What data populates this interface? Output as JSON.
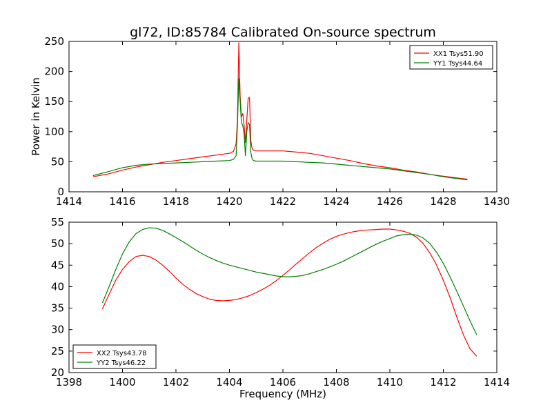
{
  "chart_data": [
    {
      "type": "line",
      "title": "gl72, ID:85784 Calibrated On-source spectrum",
      "xlabel": "",
      "ylabel": "Power in Kelvin",
      "xlim": [
        1414,
        1430
      ],
      "ylim": [
        0,
        250
      ],
      "xticks": [
        "1414",
        "1416",
        "1418",
        "1420",
        "1422",
        "1424",
        "1426",
        "1428",
        "1430"
      ],
      "yticks": [
        "0",
        "50",
        "100",
        "150",
        "200",
        "250"
      ],
      "legend_position": "top-right",
      "series": [
        {
          "name": "XX1 Tsys51.90",
          "color": "#ff0000",
          "x": [
            1414.9,
            1415.5,
            1416.0,
            1416.5,
            1417.0,
            1417.5,
            1418.0,
            1418.5,
            1419.0,
            1419.5,
            1420.0,
            1420.15,
            1420.25,
            1420.3,
            1420.35,
            1420.4,
            1420.45,
            1420.5,
            1420.55,
            1420.6,
            1420.65,
            1420.7,
            1420.75,
            1420.8,
            1420.85,
            1420.9,
            1421.0,
            1421.5,
            1422.0,
            1422.5,
            1423.0,
            1423.5,
            1424.0,
            1424.5,
            1425.0,
            1425.5,
            1426.0,
            1426.5,
            1427.0,
            1427.5,
            1428.0,
            1428.5,
            1428.9
          ],
          "y": [
            25,
            30,
            36,
            41,
            45,
            49,
            52,
            55,
            58,
            61,
            64,
            67,
            80,
            120,
            248,
            160,
            125,
            130,
            110,
            82,
            120,
            155,
            157,
            85,
            72,
            69,
            68,
            68,
            68,
            66,
            64,
            60,
            56,
            52,
            47,
            43,
            40,
            36,
            33,
            29,
            26,
            23,
            21
          ]
        },
        {
          "name": "YY1 Tsys44.64",
          "color": "#008000",
          "x": [
            1414.9,
            1415.5,
            1416.0,
            1416.5,
            1417.0,
            1417.5,
            1418.0,
            1418.5,
            1419.0,
            1419.5,
            1420.0,
            1420.15,
            1420.25,
            1420.3,
            1420.35,
            1420.4,
            1420.45,
            1420.5,
            1420.55,
            1420.6,
            1420.65,
            1420.7,
            1420.75,
            1420.8,
            1420.85,
            1420.9,
            1421.0,
            1421.5,
            1422.0,
            1422.5,
            1423.0,
            1423.5,
            1424.0,
            1424.5,
            1425.0,
            1425.5,
            1426.0,
            1426.5,
            1427.0,
            1427.5,
            1428.0,
            1428.5,
            1428.9
          ],
          "y": [
            27,
            34,
            40,
            44,
            46,
            47,
            48,
            49,
            50,
            51,
            52,
            54,
            60,
            110,
            188,
            150,
            115,
            110,
            95,
            60,
            100,
            115,
            112,
            65,
            55,
            52,
            51,
            51,
            51,
            50,
            49,
            48,
            46,
            44,
            42,
            40,
            38,
            35,
            32,
            29,
            25,
            22,
            20
          ]
        }
      ]
    },
    {
      "type": "line",
      "title": "",
      "xlabel": "Frequency (MHz)",
      "ylabel": "",
      "xlim": [
        1398,
        1414
      ],
      "ylim": [
        20,
        55
      ],
      "xticks": [
        "1398",
        "1400",
        "1402",
        "1404",
        "1406",
        "1408",
        "1410",
        "1412",
        "1414"
      ],
      "yticks": [
        "20",
        "25",
        "30",
        "35",
        "40",
        "45",
        "50",
        "55"
      ],
      "legend_position": "bottom-left",
      "series": [
        {
          "name": "XX2 Tsys43.78",
          "color": "#ff0000",
          "x": [
            1399.25,
            1399.5,
            1399.75,
            1400.0,
            1400.25,
            1400.5,
            1400.75,
            1401.0,
            1401.25,
            1401.5,
            1401.75,
            1402.0,
            1402.25,
            1402.5,
            1402.75,
            1403.0,
            1403.25,
            1403.5,
            1403.75,
            1404.0,
            1404.25,
            1404.5,
            1404.75,
            1405.0,
            1405.25,
            1405.5,
            1405.75,
            1406.0,
            1406.25,
            1406.5,
            1406.75,
            1407.0,
            1407.25,
            1407.5,
            1407.75,
            1408.0,
            1408.25,
            1408.5,
            1408.75,
            1409.0,
            1409.25,
            1409.5,
            1409.75,
            1410.0,
            1410.25,
            1410.5,
            1410.75,
            1411.0,
            1411.25,
            1411.5,
            1411.75,
            1412.0,
            1412.25,
            1412.5,
            1412.75,
            1413.0,
            1413.25
          ],
          "y": [
            34.8,
            38.2,
            41.5,
            44.0,
            45.8,
            47.0,
            47.3,
            47.0,
            46.2,
            45.0,
            43.6,
            42.0,
            40.6,
            39.4,
            38.4,
            37.7,
            37.1,
            36.8,
            36.7,
            36.8,
            37.0,
            37.4,
            37.9,
            38.6,
            39.4,
            40.3,
            41.4,
            42.6,
            43.9,
            45.3,
            46.6,
            47.9,
            49.1,
            50.1,
            51.0,
            51.7,
            52.2,
            52.6,
            52.9,
            53.1,
            53.2,
            53.3,
            53.4,
            53.4,
            53.2,
            52.9,
            52.4,
            51.5,
            50.0,
            47.8,
            45.0,
            41.5,
            37.5,
            33.0,
            28.8,
            25.5,
            23.8
          ]
        },
        {
          "name": "YY2 Tsys46.22",
          "color": "#008000",
          "x": [
            1399.25,
            1399.5,
            1399.75,
            1400.0,
            1400.25,
            1400.5,
            1400.75,
            1401.0,
            1401.25,
            1401.5,
            1401.75,
            1402.0,
            1402.25,
            1402.5,
            1402.75,
            1403.0,
            1403.25,
            1403.5,
            1403.75,
            1404.0,
            1404.25,
            1404.5,
            1404.75,
            1405.0,
            1405.25,
            1405.5,
            1405.75,
            1406.0,
            1406.25,
            1406.5,
            1406.75,
            1407.0,
            1407.25,
            1407.5,
            1407.75,
            1408.0,
            1408.25,
            1408.5,
            1408.75,
            1409.0,
            1409.25,
            1409.5,
            1409.75,
            1410.0,
            1410.25,
            1410.5,
            1410.75,
            1411.0,
            1411.25,
            1411.5,
            1411.75,
            1412.0,
            1412.25,
            1412.5,
            1412.75,
            1413.0,
            1413.25
          ],
          "y": [
            36.2,
            40.0,
            44.0,
            47.6,
            50.4,
            52.3,
            53.3,
            53.7,
            53.6,
            53.1,
            52.3,
            51.4,
            50.5,
            49.5,
            48.5,
            47.6,
            46.8,
            46.1,
            45.5,
            45.0,
            44.6,
            44.2,
            43.8,
            43.4,
            43.1,
            42.8,
            42.5,
            42.3,
            42.3,
            42.4,
            42.6,
            43.0,
            43.5,
            44.0,
            44.6,
            45.2,
            45.9,
            46.7,
            47.5,
            48.3,
            49.1,
            49.9,
            50.6,
            51.2,
            51.8,
            52.1,
            52.2,
            52.0,
            51.3,
            50.0,
            48.0,
            45.4,
            42.3,
            39.0,
            35.5,
            32.0,
            28.8
          ]
        }
      ]
    }
  ]
}
